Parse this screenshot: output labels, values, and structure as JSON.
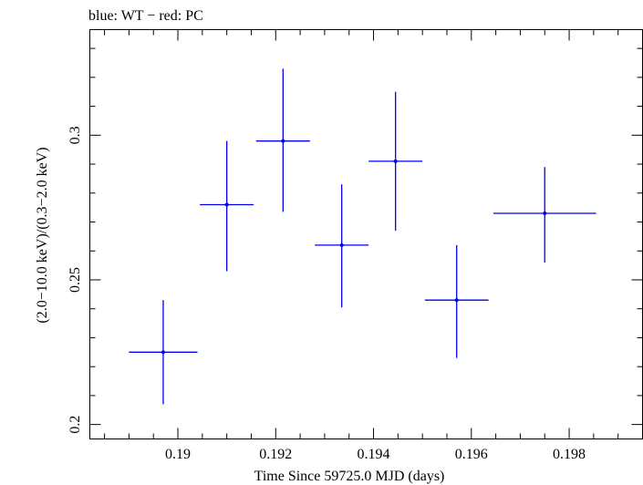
{
  "chart_data": {
    "type": "scatter",
    "title": "blue: WT − red: PC",
    "xlabel": "Time Since 59725.0 MJD (days)",
    "ylabel": "(2.0−10.0 keV)/(0.3−2.0 keV)",
    "xlim": [
      0.1882,
      0.1995
    ],
    "ylim": [
      0.195,
      0.3365
    ],
    "x_ticks": [
      0.19,
      0.192,
      0.194,
      0.196,
      0.198
    ],
    "x_tick_labels": [
      "0.19",
      "0.192",
      "0.194",
      "0.196",
      "0.198"
    ],
    "y_ticks": [
      0.2,
      0.25,
      0.3
    ],
    "y_tick_labels": [
      "0.2",
      "0.25",
      "0.3"
    ],
    "grid": false,
    "series": [
      {
        "color": "#0000ee",
        "points": [
          {
            "x": 0.1897,
            "y": 0.225,
            "xerr": [
              0.0007,
              0.0007
            ],
            "yerr": [
              0.018,
              0.018
            ]
          },
          {
            "x": 0.191,
            "y": 0.276,
            "xerr": [
              0.00055,
              0.00055
            ],
            "yerr": [
              0.023,
              0.022
            ]
          },
          {
            "x": 0.19215,
            "y": 0.298,
            "xerr": [
              0.00055,
              0.00055
            ],
            "yerr": [
              0.0245,
              0.025
            ]
          },
          {
            "x": 0.19335,
            "y": 0.262,
            "xerr": [
              0.00055,
              0.00055
            ],
            "yerr": [
              0.0215,
              0.021
            ]
          },
          {
            "x": 0.19445,
            "y": 0.291,
            "xerr": [
              0.00055,
              0.00055
            ],
            "yerr": [
              0.024,
              0.024
            ]
          },
          {
            "x": 0.1957,
            "y": 0.243,
            "xerr": [
              0.00065,
              0.00065
            ],
            "yerr": [
              0.02,
              0.019
            ]
          },
          {
            "x": 0.1975,
            "y": 0.273,
            "xerr": [
              0.00105,
              0.00105
            ],
            "yerr": [
              0.017,
              0.016
            ]
          }
        ]
      }
    ]
  }
}
